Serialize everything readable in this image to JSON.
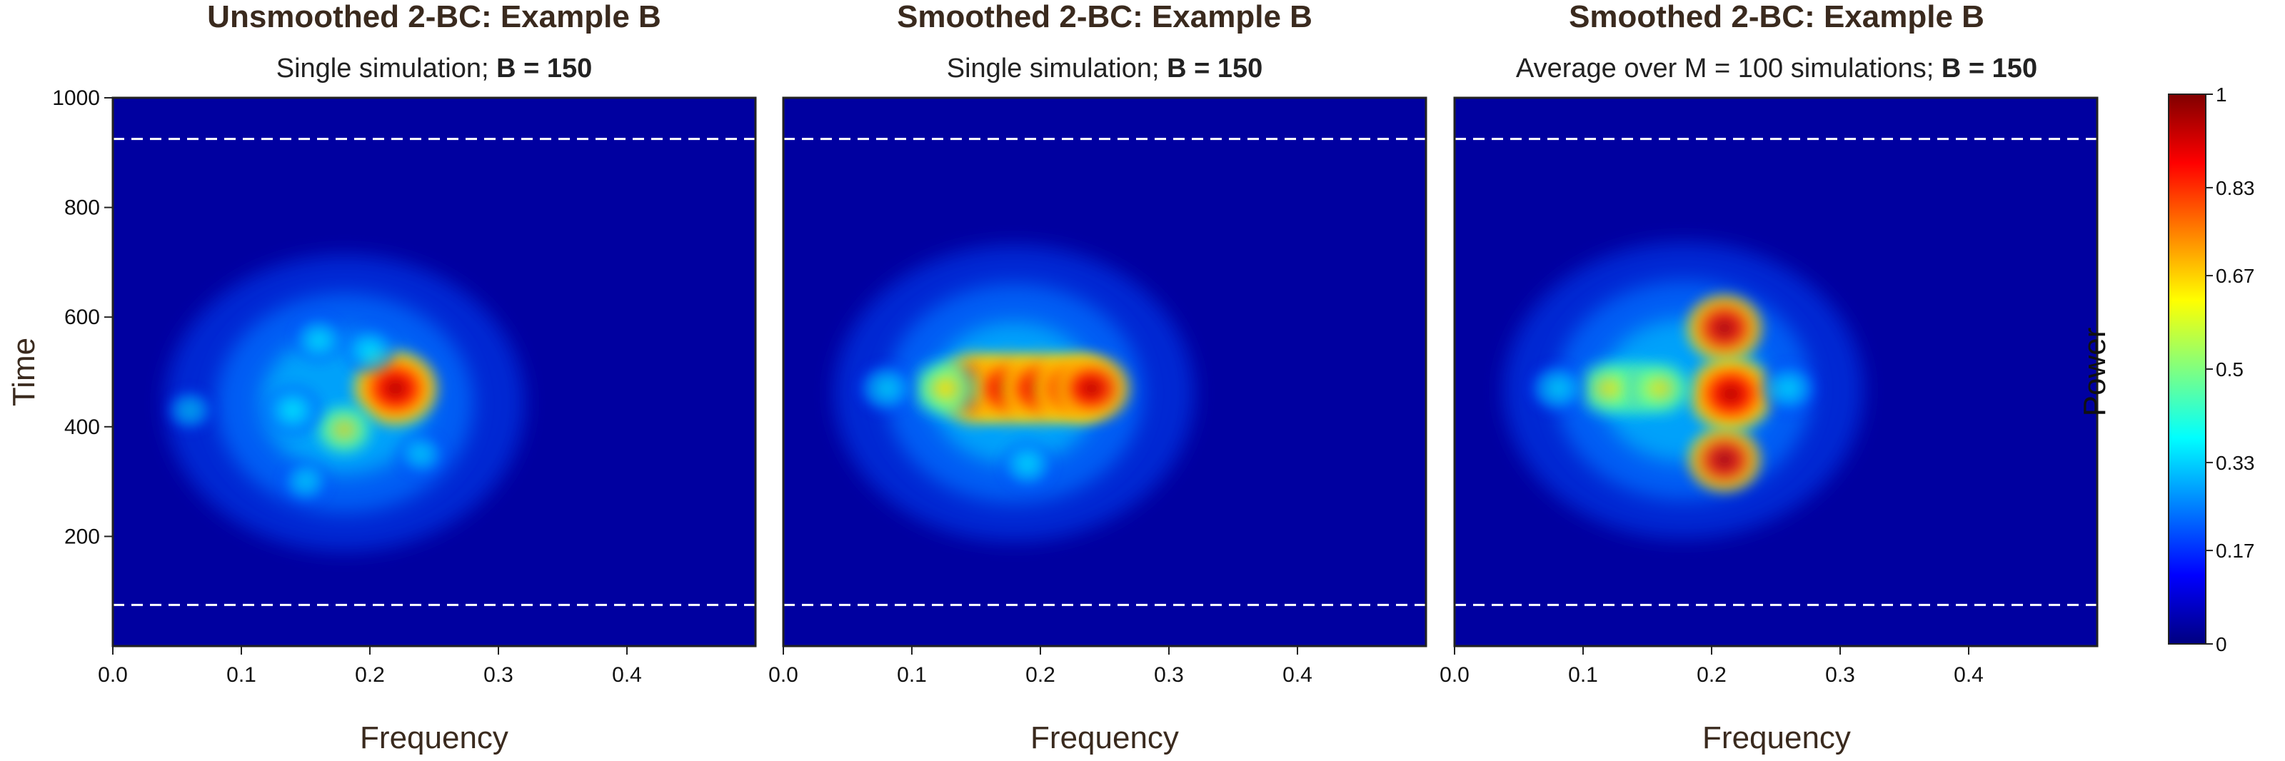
{
  "chart_data": [
    {
      "type": "heatmap",
      "title": "Unsmoothed 2-BC: Example B",
      "subtitle_prefix": "Single simulation; ",
      "subtitle_bold": "B = 150",
      "xlabel": "Frequency",
      "ylabel": "Time",
      "xlim": [
        0,
        0.5
      ],
      "ylim": [
        0,
        1000
      ],
      "x_ticks": [
        "0.0",
        "0.1",
        "0.2",
        "0.3",
        "0.4"
      ],
      "x_tick_values": [
        0,
        0.1,
        0.2,
        0.3,
        0.4
      ],
      "y_ticks": [
        "200",
        "400",
        "600",
        "800",
        "1000"
      ],
      "y_tick_values": [
        200,
        400,
        600,
        800,
        1000
      ],
      "reference_lines_time": [
        75,
        925
      ],
      "peaks": [
        {
          "freq": 0.22,
          "time": 470,
          "power": 1.0
        },
        {
          "freq": 0.18,
          "time": 395,
          "power": 0.62
        },
        {
          "freq": 0.14,
          "time": 430,
          "power": 0.45
        },
        {
          "freq": 0.2,
          "time": 540,
          "power": 0.4
        },
        {
          "freq": 0.16,
          "time": 560,
          "power": 0.38
        },
        {
          "freq": 0.15,
          "time": 300,
          "power": 0.3
        },
        {
          "freq": 0.24,
          "time": 350,
          "power": 0.3
        },
        {
          "freq": 0.06,
          "time": 430,
          "power": 0.25
        }
      ]
    },
    {
      "type": "heatmap",
      "title": "Smoothed 2-BC: Example B",
      "subtitle_prefix": "Single simulation; ",
      "subtitle_bold": "B = 150",
      "xlabel": "Frequency",
      "ylabel": "",
      "xlim": [
        0,
        0.5
      ],
      "ylim": [
        0,
        1000
      ],
      "x_ticks": [
        "0.0",
        "0.1",
        "0.2",
        "0.3",
        "0.4"
      ],
      "x_tick_values": [
        0,
        0.1,
        0.2,
        0.3,
        0.4
      ],
      "reference_lines_time": [
        75,
        925
      ],
      "peaks": [
        {
          "freq": 0.15,
          "time": 470,
          "power": 0.95
        },
        {
          "freq": 0.175,
          "time": 470,
          "power": 0.95
        },
        {
          "freq": 0.2,
          "time": 470,
          "power": 0.95
        },
        {
          "freq": 0.225,
          "time": 470,
          "power": 0.95
        },
        {
          "freq": 0.125,
          "time": 470,
          "power": 0.75
        },
        {
          "freq": 0.24,
          "time": 470,
          "power": 0.85
        },
        {
          "freq": 0.08,
          "time": 470,
          "power": 0.45
        },
        {
          "freq": 0.19,
          "time": 330,
          "power": 0.4
        }
      ]
    },
    {
      "type": "heatmap",
      "title": "Smoothed 2-BC: Example B",
      "subtitle_prefix": "Average over M = 100 simulations; ",
      "subtitle_bold": "B = 150",
      "xlabel": "Frequency",
      "ylabel": "",
      "xlim": [
        0,
        0.5
      ],
      "ylim": [
        0,
        1000
      ],
      "x_ticks": [
        "0.0",
        "0.1",
        "0.2",
        "0.3",
        "0.4"
      ],
      "x_tick_values": [
        0,
        0.1,
        0.2,
        0.3,
        0.4
      ],
      "reference_lines_time": [
        75,
        925
      ],
      "peaks": [
        {
          "freq": 0.215,
          "time": 460,
          "power": 1.0
        },
        {
          "freq": 0.21,
          "time": 580,
          "power": 0.85
        },
        {
          "freq": 0.21,
          "time": 340,
          "power": 0.8
        },
        {
          "freq": 0.14,
          "time": 470,
          "power": 0.75
        },
        {
          "freq": 0.12,
          "time": 470,
          "power": 0.7
        },
        {
          "freq": 0.16,
          "time": 470,
          "power": 0.7
        },
        {
          "freq": 0.08,
          "time": 470,
          "power": 0.45
        },
        {
          "freq": 0.26,
          "time": 470,
          "power": 0.45
        }
      ]
    }
  ],
  "colorbar": {
    "label": "Power",
    "range": [
      0,
      1
    ],
    "ticks": [
      "0",
      "0.17",
      "0.33",
      "0.5",
      "0.67",
      "0.83",
      "1"
    ],
    "tick_values": [
      0,
      0.17,
      0.33,
      0.5,
      0.67,
      0.83,
      1
    ],
    "colors": [
      "#000080",
      "#0000ff",
      "#0080ff",
      "#00ffff",
      "#80ff80",
      "#ffff00",
      "#ff8000",
      "#ff0000",
      "#800000"
    ]
  }
}
